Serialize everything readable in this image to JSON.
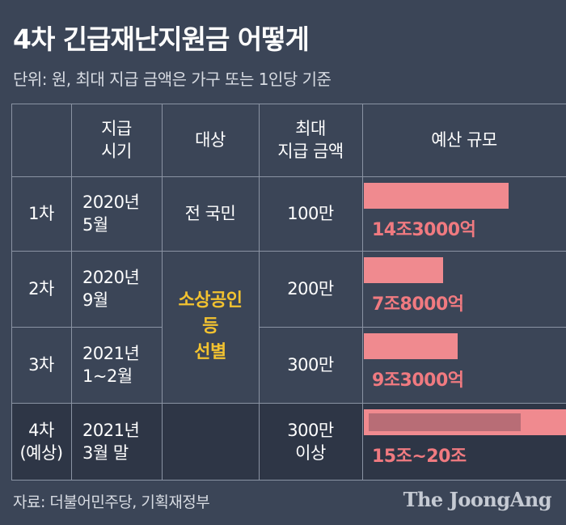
{
  "title": "4차 긴급재난지원금 어떻게",
  "subtitle": "단위: 원, 최대 지급 금액은 가구 또는 1인당 기준",
  "headers": {
    "period": "지급\n시기",
    "target": "대상",
    "max_amount": "최대\n지급 금액",
    "budget": "예산 규모"
  },
  "rows": [
    {
      "round": "1차",
      "period": "2020년\n5월",
      "max_amount": "100만",
      "budget_label": "14조3000억"
    },
    {
      "round": "2차",
      "period": "2020년\n9월",
      "max_amount": "200만",
      "budget_label": "7조8000억"
    },
    {
      "round": "3차",
      "period": "2021년\n1~2월",
      "max_amount": "300만",
      "budget_label": "9조3000억"
    },
    {
      "round": "4차\n(예상)",
      "period": "2021년\n3월 말",
      "max_amount": "300만\n이상",
      "budget_label": "15조~20조"
    }
  ],
  "targets": {
    "all": "전 국민",
    "selective": "소상공인\n등\n선별"
  },
  "source": "자료: 더불어민주당, 기획재정부",
  "logo": "The JoongAng",
  "colors": {
    "background": "#3b4557",
    "bar": "#f08a8f",
    "bar_label": "#f07a80",
    "target_highlight": "#f2c230"
  },
  "chart_data": {
    "type": "bar",
    "orientation": "horizontal",
    "categories": [
      "1차",
      "2차",
      "3차",
      "4차 (예상)"
    ],
    "values": [
      14.3,
      7.8,
      9.3,
      20
    ],
    "range_min": [
      null,
      null,
      null,
      15
    ],
    "unit": "조",
    "value_labels": [
      "14조3000억",
      "7조8000억",
      "9조3000억",
      "15조~20조"
    ],
    "xlim": [
      0,
      20
    ]
  }
}
